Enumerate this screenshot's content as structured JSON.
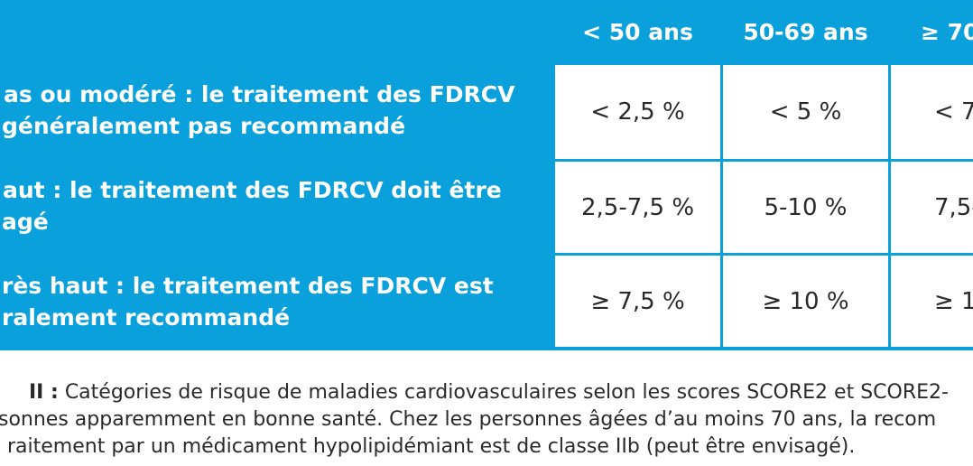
{
  "table": {
    "headers": [
      "< 50 ans",
      "50-69 ans",
      "≥ 70"
    ],
    "rows": [
      {
        "label_line1": "as ou modéré : le traitement des FDRCV",
        "label_line2": "généralement pas recommandé",
        "values": [
          "< 2,5 %",
          "< 5 %",
          "< 7"
        ]
      },
      {
        "label_line1": "aut : le traitement des FDRCV doit être",
        "label_line2": "agé",
        "values": [
          "2,5-7,5 %",
          "5-10 %",
          "7,5-"
        ]
      },
      {
        "label_line1": "rès haut : le traitement des FDRCV est",
        "label_line2": "ralement recommandé",
        "values": [
          "≥ 7,5 %",
          "≥ 10 %",
          "≥ 1"
        ]
      }
    ],
    "colors": {
      "header_blue": "#0aa0dc",
      "cell_bg": "#ffffff",
      "text_dark": "#2a2a2a"
    }
  },
  "caption": {
    "lead": "II :",
    "line1_rest": " Catégories de risque de maladies cardiovasculaires selon les scores SCORE2 et SCORE2-",
    "line2": "sonnes apparemment en bonne santé. Chez les personnes âgées d’au moins 70 ans, la recom",
    "line3": "raitement par un médicament hypolipidémiant est de classe IIb (peut être envisagé)."
  }
}
